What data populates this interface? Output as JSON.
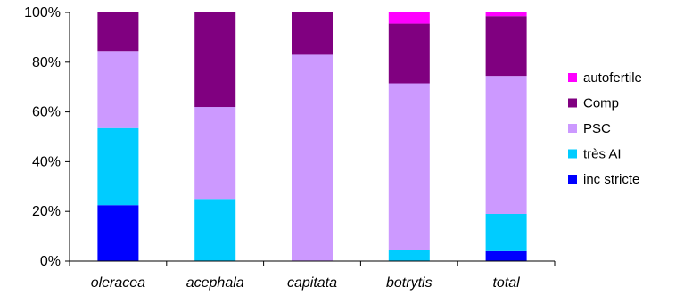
{
  "chart_data": {
    "type": "bar",
    "stacked": true,
    "percent_stacked": true,
    "categories": [
      "oleracea",
      "acephala",
      "capitata",
      "botrytis",
      "total"
    ],
    "series": [
      {
        "name": "inc stricte",
        "color": "#0000ff",
        "values": [
          22.5,
          0,
          0,
          0,
          4
        ]
      },
      {
        "name": "très AI",
        "color": "#00ccff",
        "values": [
          31,
          25,
          0,
          4.5,
          15
        ]
      },
      {
        "name": "PSC",
        "color": "#cc99ff",
        "values": [
          31,
          37,
          83,
          67,
          55.5
        ]
      },
      {
        "name": "Comp",
        "color": "#800080",
        "values": [
          15.5,
          38,
          17,
          24,
          24
        ]
      },
      {
        "name": "autofertile",
        "color": "#ff00ff",
        "values": [
          0,
          0,
          0,
          4.5,
          1.5
        ]
      }
    ],
    "y_ticks": [
      "0%",
      "20%",
      "40%",
      "60%",
      "80%",
      "100%"
    ],
    "ylim": [
      0,
      100
    ],
    "grid": false,
    "legend_position": "right",
    "legend_order": [
      "autofertile",
      "Comp",
      "PSC",
      "très AI",
      "inc stricte"
    ]
  }
}
